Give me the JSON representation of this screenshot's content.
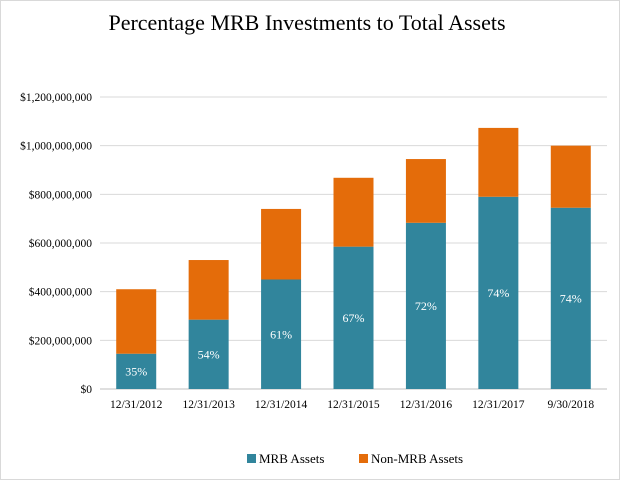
{
  "chart_data": {
    "type": "bar",
    "stacked": true,
    "title": "Percentage MRB Investments to Total Assets",
    "categories": [
      "12/31/2012",
      "12/31/2013",
      "12/31/2014",
      "12/31/2015",
      "12/31/2016",
      "12/31/2017",
      "9/30/2018"
    ],
    "series": [
      {
        "name": "MRB Assets",
        "color": "#31859c",
        "values": [
          145000000,
          285000000,
          450000000,
          585000000,
          683000000,
          790000000,
          745000000
        ]
      },
      {
        "name": "Non-MRB Assets",
        "color": "#e46c0a",
        "values": [
          265000000,
          245000000,
          290000000,
          283000000,
          262000000,
          283000000,
          255000000
        ]
      }
    ],
    "data_labels": [
      "35%",
      "54%",
      "61%",
      "67%",
      "72%",
      "74%",
      "74%"
    ],
    "ylim": [
      0,
      1200000000
    ],
    "y_ticks": [
      0,
      200000000,
      400000000,
      600000000,
      800000000,
      1000000000,
      1200000000
    ],
    "y_tick_labels": [
      "$0",
      "$200,000,000",
      "$400,000,000",
      "$600,000,000",
      "$800,000,000",
      "$1,000,000,000",
      "$1,200,000,000"
    ],
    "xlabel": "",
    "ylabel": "",
    "grid": true,
    "legend": "bottom"
  }
}
